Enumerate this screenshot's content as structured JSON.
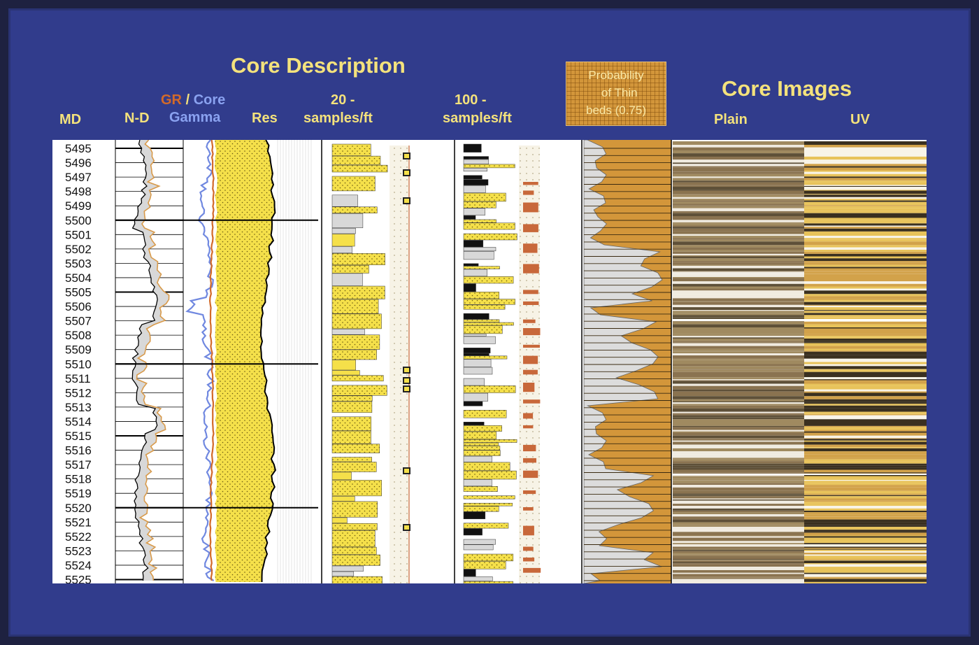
{
  "slide": {
    "titles": {
      "core_description": "Core Description",
      "core_images": "Core Images"
    },
    "headers": {
      "md": "MD",
      "nd": "N-D",
      "gr": "GR",
      "slash": "/",
      "core": "Core",
      "gamma": "Gamma",
      "res": "Res",
      "s20_line1": "20 -",
      "s20_line2": "samples/ft",
      "s100_line1": "100  -",
      "s100_line2": "samples/ft",
      "probability": "Probability\n   of Thin \nbeds (0.75)",
      "plain": "Plain",
      "uv": "UV"
    },
    "depths": [
      "5495",
      "5496",
      "5497",
      "5498",
      "5499",
      "5500",
      "5501",
      "5502",
      "5503",
      "5504",
      "5505",
      "5506",
      "5507",
      "5508",
      "5509",
      "5510",
      "5511",
      "5512",
      "5513",
      "5514",
      "5515",
      "5516",
      "5517",
      "5518",
      "5519",
      "5520",
      "5521",
      "5522",
      "5523",
      "5524",
      "5525"
    ],
    "colors": {
      "background": "#313c8c",
      "title_text": "#f4e27c",
      "gr_curve": "#d26a2a",
      "core_gamma_curve": "#7088e0",
      "sand": "#f5e04a",
      "shale": "#d8d8d8",
      "probability_fill": "#d3963a",
      "calcite": "#c8683a"
    }
  }
}
